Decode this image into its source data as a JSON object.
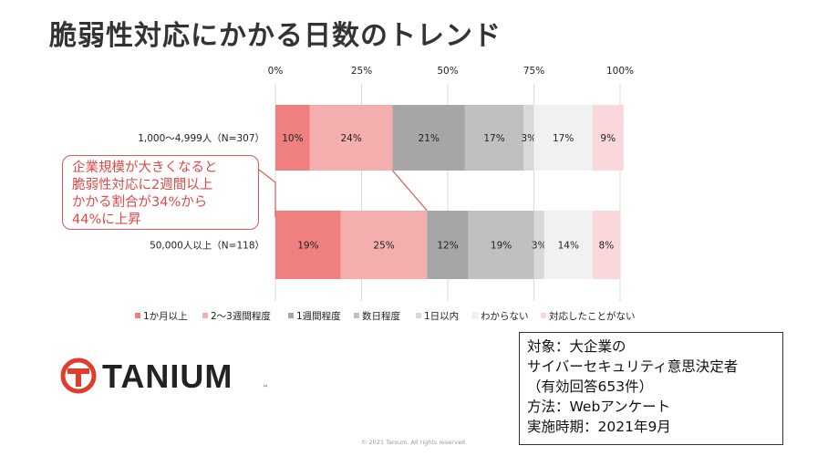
{
  "title": "脆弱性対応にかかる日数のトレンド",
  "chart_data": {
    "type": "bar",
    "orientation": "horizontal",
    "stacked": true,
    "percent_axis_ticks": [
      "0%",
      "25%",
      "50%",
      "75%",
      "100%"
    ],
    "xlim": [
      0,
      100
    ],
    "categories": [
      "1,000～4,999人（N=307）",
      "50,000人以上（N=118）"
    ],
    "series": [
      {
        "name": "1か月以上",
        "color": "#f08080",
        "values": [
          10,
          19
        ],
        "labels": [
          "10%",
          "19%"
        ]
      },
      {
        "name": "2～3週間程度",
        "color": "#f4aeae",
        "values": [
          24,
          25
        ],
        "labels": [
          "24%",
          "25%"
        ]
      },
      {
        "name": "1週間程度",
        "color": "#a6a6a6",
        "values": [
          21,
          12
        ],
        "labels": [
          "21%",
          "12%"
        ]
      },
      {
        "name": "数日程度",
        "color": "#c0c0c0",
        "values": [
          17,
          19
        ],
        "labels": [
          "17%",
          "19%"
        ]
      },
      {
        "name": "1日以内",
        "color": "#d9d9d9",
        "values": [
          3,
          3
        ],
        "labels": [
          "3%",
          "3%"
        ]
      },
      {
        "name": "わからない",
        "color": "#f1f1f1",
        "values": [
          17,
          14
        ],
        "labels": [
          "17%",
          "14%"
        ]
      },
      {
        "name": "対応したことがない",
        "color": "#fad7da",
        "values": [
          9,
          8
        ],
        "labels": [
          "9%",
          "8%"
        ]
      }
    ],
    "legend_position": "bottom"
  },
  "callout": {
    "lines": [
      "企業規模が大きくなると",
      "脆弱性対応に2週間以上",
      "かかる割合が34%から",
      "44%に上昇"
    ]
  },
  "logo": {
    "text": "TANIUM",
    "tm": "™",
    "color": "#e23c2d"
  },
  "infobox": {
    "lines": [
      "対象：大企業の",
      "サイバーセキュリティ意思決定者",
      "（有効回答653件）",
      "方法：Webアンケート",
      "実施時期：2021年9月"
    ]
  },
  "copyright": "© 2021 Tanium. All rights reserved."
}
